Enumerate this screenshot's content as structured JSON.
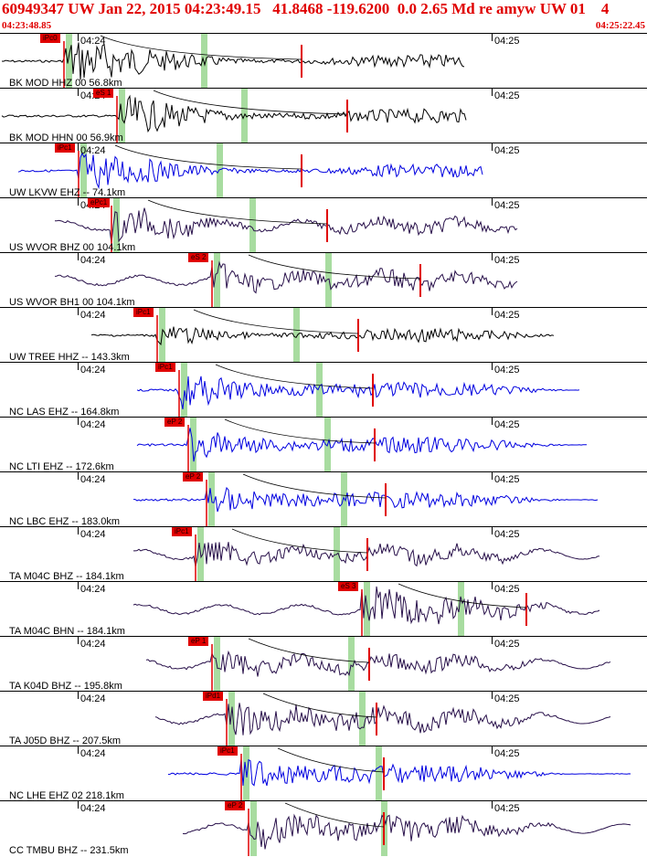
{
  "header": {
    "title": "60949347 UW Jan 22, 2015 04:23:49.15   41.8468 -119.6200  0.0 2.65 Md re amyw UW 01    4",
    "start_time": "04:23:48.85",
    "end_time": "04:25:22.45"
  },
  "tick_labels": [
    "04:24",
    "04:25"
  ],
  "colors": {
    "blue": "#0000e0",
    "black": "#000000",
    "purple": "#28104a",
    "red": "#e00000",
    "green": "#a8dca0"
  },
  "channels": [
    {
      "label": "BK MOD HHZ 00 56.8km",
      "pick": "iPc0",
      "color": "black"
    },
    {
      "label": "BK MOD HHN 00 56.9km",
      "pick": "eS 1",
      "color": "black"
    },
    {
      "label": "UW LKVW EHZ -- 74.1km",
      "pick": "iPc1",
      "color": "blue"
    },
    {
      "label": "US WVOR BHZ 00 104.1km",
      "pick": "ePc1",
      "color": "purple"
    },
    {
      "label": "US WVOR BH1 00 104.1km",
      "pick": "eS 2",
      "color": "purple"
    },
    {
      "label": "UW TREE HHZ -- 143.3km",
      "pick": "iPc1",
      "color": "black"
    },
    {
      "label": "NC LAS EHZ -- 164.8km",
      "pick": "iPc1",
      "color": "blue"
    },
    {
      "label": "NC LTI EHZ -- 172.6km",
      "pick": "eP 2",
      "color": "blue"
    },
    {
      "label": "NC LBC EHZ -- 183.0km",
      "pick": "eP 2",
      "color": "blue"
    },
    {
      "label": "TA M04C BHZ -- 184.1km",
      "pick": "iPc1",
      "color": "purple"
    },
    {
      "label": "TA M04C BHN -- 184.1km",
      "pick": "eS 3",
      "color": "purple"
    },
    {
      "label": "TA K04D BHZ -- 195.8km",
      "pick": "eP 1",
      "color": "purple"
    },
    {
      "label": "TA J05D BHZ -- 207.5km",
      "pick": "iPd1",
      "color": "purple"
    },
    {
      "label": "NC LHE EHZ 02 218.1km",
      "pick": "iPc1",
      "color": "blue"
    },
    {
      "label": "CC TMBU BHZ -- 231.5km",
      "pick": "eP 2",
      "color": "purple"
    }
  ]
}
